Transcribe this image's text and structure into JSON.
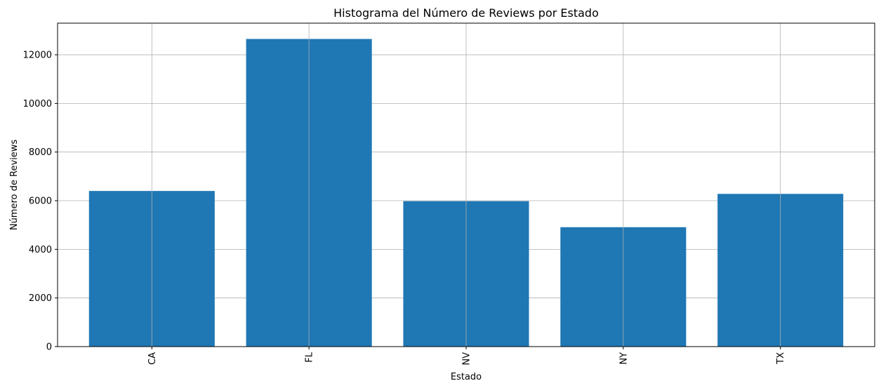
{
  "chart_data": {
    "type": "bar",
    "title": "Histograma del Número de Reviews por Estado",
    "xlabel": "Estado",
    "ylabel": "Número de Reviews",
    "categories": [
      "CA",
      "FL",
      "NV",
      "NY",
      "TX"
    ],
    "values": [
      6400,
      12650,
      5980,
      4910,
      6280
    ],
    "ylim": [
      0,
      13300
    ],
    "yticks": [
      0,
      2000,
      4000,
      6000,
      8000,
      10000,
      12000
    ],
    "grid": true,
    "x_tick_rotation": "vertical",
    "bar_color": "#1f77b4",
    "grid_color": "#b0b0b0"
  }
}
